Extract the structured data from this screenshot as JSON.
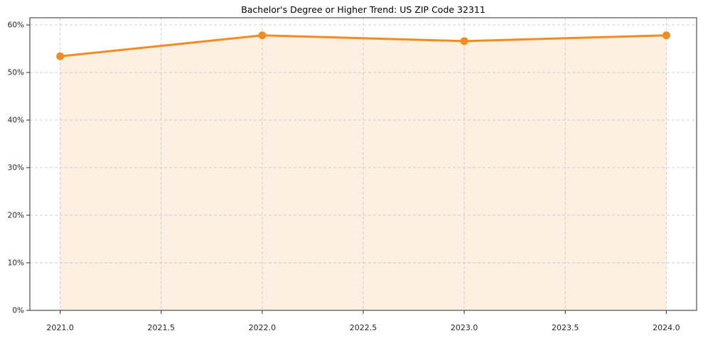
{
  "chart_data": {
    "type": "line",
    "title": "Bachelor's Degree or Higher Trend: US ZIP Code 32311",
    "x": [
      2021,
      2022,
      2023,
      2024
    ],
    "values": [
      53.4,
      57.8,
      56.6,
      57.8
    ],
    "xlabel": "",
    "ylabel": "",
    "xlim": [
      2020.85,
      2024.15
    ],
    "ylim": [
      0,
      61.5
    ],
    "x_ticks": [
      2021.0,
      2021.5,
      2022.0,
      2022.5,
      2023.0,
      2023.5,
      2024.0
    ],
    "x_tick_labels": [
      "2021.0",
      "2021.5",
      "2022.0",
      "2022.5",
      "2023.0",
      "2023.5",
      "2024.0"
    ],
    "y_ticks": [
      0,
      10,
      20,
      30,
      40,
      50,
      60
    ],
    "y_tick_labels": [
      "0%",
      "10%",
      "20%",
      "30%",
      "40%",
      "50%",
      "60%"
    ],
    "grid": true,
    "grid_style": "dashed",
    "legend": "none",
    "area_fill": true,
    "colors": {
      "line": "#f28c1e",
      "marker": "#f28c1e",
      "fill": "#fdf0e2",
      "grid": "#c9c9c9",
      "axis": "#2b2b2b",
      "tick_label": "#262626",
      "title": "#000000"
    }
  }
}
